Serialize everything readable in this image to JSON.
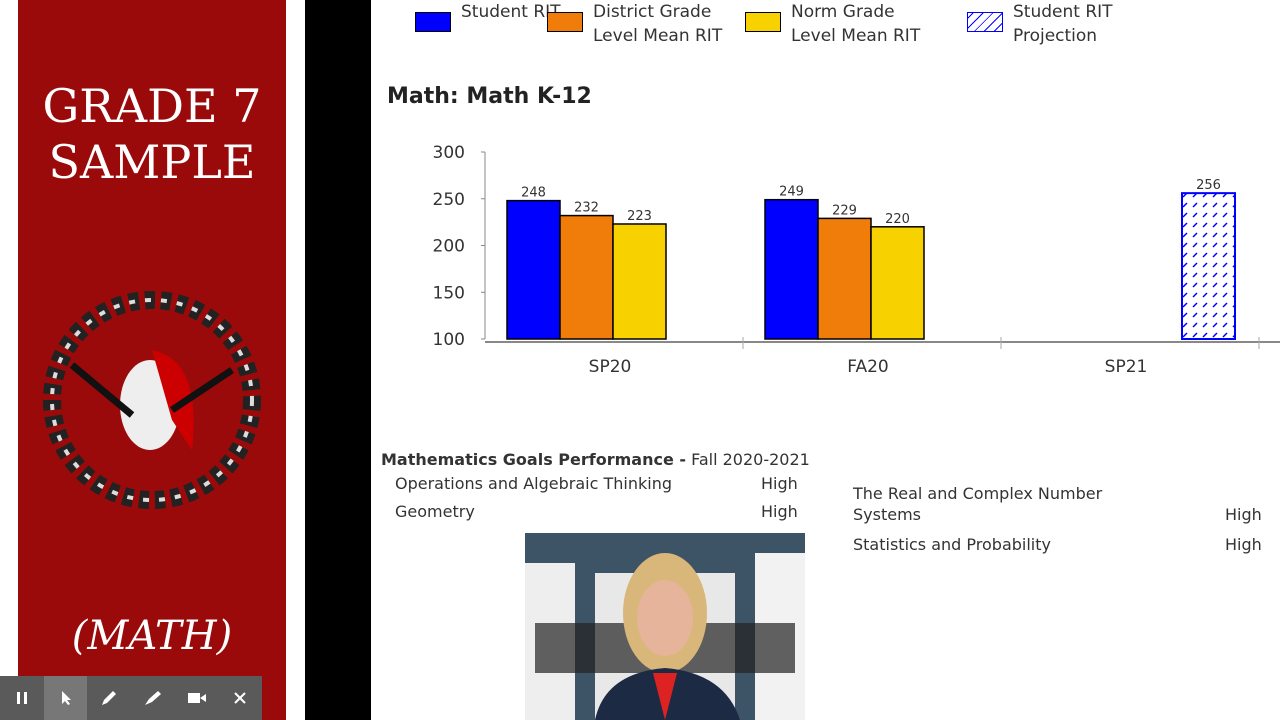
{
  "sidebar": {
    "title_lines": [
      "GRADE 7",
      "SAMPLE"
    ],
    "subtitle": "(MATH)"
  },
  "chart_data": {
    "type": "bar",
    "title": "Math: Math K-12",
    "categories": [
      "SP20",
      "FA20",
      "SP21"
    ],
    "series": [
      {
        "name": "Student RIT",
        "color": "#0000ff",
        "values": [
          248,
          249,
          null
        ]
      },
      {
        "name": "District Grade Level Mean RIT",
        "color": "#f07c0a",
        "values": [
          232,
          229,
          null
        ]
      },
      {
        "name": "Norm Grade Level Mean RIT",
        "color": "#f8d200",
        "values": [
          223,
          220,
          null
        ]
      },
      {
        "name": "Student RIT Projection",
        "color": "#0000ff",
        "pattern": "hatch",
        "values": [
          null,
          null,
          256
        ]
      }
    ],
    "ylim": [
      100,
      300
    ],
    "yticks": [
      100,
      150,
      200,
      250,
      300
    ],
    "grid": false
  },
  "goals": {
    "title_bold": "Mathematics Goals Performance -",
    "title_rest": "Fall 2020-2021",
    "left": [
      [
        "Operations and Algebraic Thinking",
        "High"
      ],
      [
        "Geometry",
        "High"
      ]
    ],
    "right": [
      [
        "The Real and Complex Number Systems",
        "High"
      ],
      [
        "Statistics and Probability",
        "High"
      ]
    ]
  }
}
